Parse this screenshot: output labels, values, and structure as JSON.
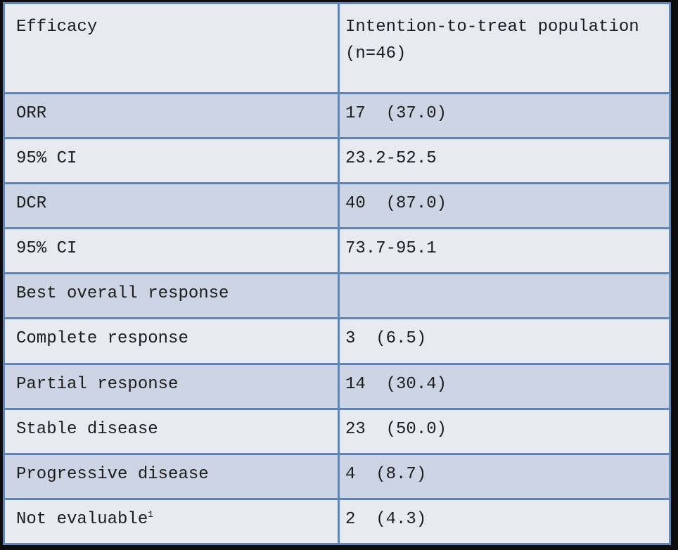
{
  "table": {
    "header": {
      "col1": "Efficacy",
      "col2": "Intention-to-treat population (n=46)"
    },
    "rows": [
      {
        "label": "ORR",
        "value": "17  (37.0)"
      },
      {
        "label": "95% CI",
        "value": "23.2-52.5"
      },
      {
        "label": "DCR",
        "value": "40  (87.0)"
      },
      {
        "label": "95% CI",
        "value": "73.7-95.1"
      },
      {
        "label": "Best overall response",
        "value": ""
      },
      {
        "label": "Complete response",
        "value": "3  (6.5)"
      },
      {
        "label": "Partial response",
        "value": "14  (30.4)"
      },
      {
        "label": "Stable disease",
        "value": "23  (50.0)"
      },
      {
        "label": "Progressive disease",
        "value": "4  (8.7)"
      },
      {
        "label": "Not evaluable",
        "label_sup": "1",
        "value": "2  (4.3)"
      }
    ]
  },
  "colors": {
    "row_dark": "#cdd5e4",
    "row_light": "#e8eaf2",
    "border_blue": "#6285b4",
    "frame_black": "#0c0c0c",
    "text": "#1c1c1c"
  }
}
